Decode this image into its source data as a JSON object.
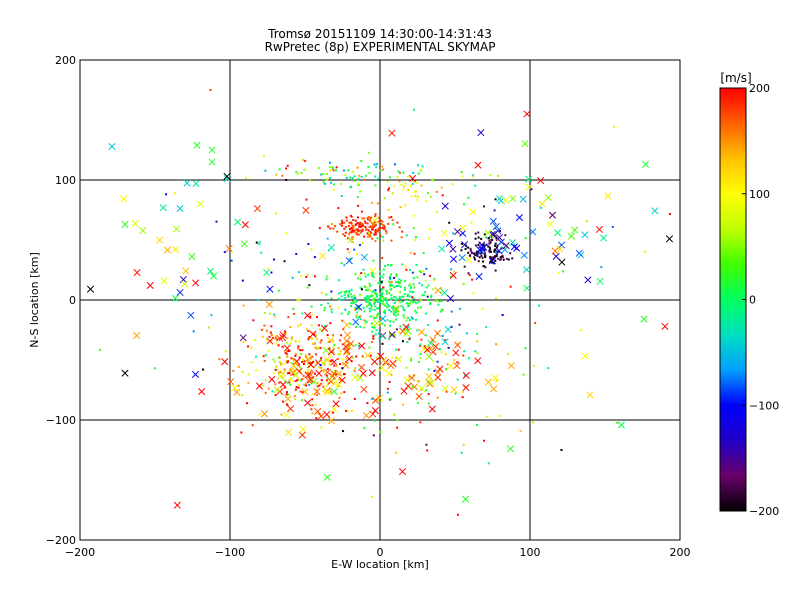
{
  "chart_data": {
    "type": "scatter",
    "title": "Tromsø 20151109 14:30:00-14:31:43",
    "subtitle": "RwPretec (8p) EXPERIMENTAL SKYMAP",
    "xlabel": "E-W location [km]",
    "ylabel": "N-S location [km]",
    "xlim": [
      -200,
      200
    ],
    "ylim": [
      -200,
      200
    ],
    "x_ticks": [
      -200,
      -100,
      0,
      100,
      200
    ],
    "y_ticks": [
      -200,
      -100,
      0,
      100,
      200
    ],
    "x_tick_labels": [
      "−200",
      "−100",
      "0",
      "100",
      "200"
    ],
    "y_tick_labels": [
      "−200",
      "−100",
      "0",
      "100",
      "200"
    ],
    "grid": true,
    "marker_types": [
      "dot",
      "cross"
    ],
    "colorbar": {
      "label": "[m/s]",
      "range": [
        -200,
        200
      ],
      "ticks": [
        200,
        100,
        0,
        -100,
        -200
      ],
      "tick_labels": [
        "200",
        "100",
        "0",
        "−100",
        "−200"
      ],
      "colormap": [
        "#000000",
        "#6a006a",
        "#2000c8",
        "#0000ff",
        "#00a0ff",
        "#00e0c0",
        "#00ff60",
        "#40ff00",
        "#c0ff00",
        "#ffff00",
        "#ffc000",
        "#ff6000",
        "#ff0000"
      ]
    },
    "clusters": [
      {
        "x": 0,
        "y": 0,
        "sx": 18,
        "sy": 12,
        "v": 5,
        "vs": 15,
        "n": 300,
        "marker": "dot"
      },
      {
        "x": -10,
        "y": 60,
        "sx": 10,
        "sy": 5,
        "v": 180,
        "vs": 15,
        "n": 160,
        "marker": "dot"
      },
      {
        "x": 70,
        "y": 40,
        "sx": 8,
        "sy": 7,
        "v": -190,
        "vs": 15,
        "n": 120,
        "marker": "dot"
      },
      {
        "x": 70,
        "y": 45,
        "sx": 12,
        "sy": 10,
        "v": -100,
        "vs": 30,
        "n": 25,
        "marker": "cross"
      },
      {
        "x": -50,
        "y": -55,
        "sx": 22,
        "sy": 20,
        "v": 150,
        "vs": 70,
        "n": 300,
        "marker": "dot"
      },
      {
        "x": -45,
        "y": -60,
        "sx": 25,
        "sy": 22,
        "v": 170,
        "vs": 50,
        "n": 80,
        "marker": "cross"
      },
      {
        "x": 30,
        "y": -60,
        "sx": 25,
        "sy": 25,
        "v": 80,
        "vs": 110,
        "n": 90,
        "marker": "dot"
      },
      {
        "x": 25,
        "y": -55,
        "sx": 25,
        "sy": 20,
        "v": 150,
        "vs": 60,
        "n": 50,
        "marker": "cross"
      },
      {
        "x": -10,
        "y": 105,
        "sx": 35,
        "sy": 6,
        "v": 40,
        "vs": 60,
        "n": 90,
        "marker": "dot"
      },
      {
        "x": 20,
        "y": 92,
        "sx": 15,
        "sy": 6,
        "v": 100,
        "vs": 40,
        "n": 30,
        "marker": "dot"
      },
      {
        "x": 0,
        "y": 20,
        "sx": 50,
        "sy": 35,
        "v": 20,
        "vs": 90,
        "n": 140,
        "marker": "dot"
      },
      {
        "x": 110,
        "y": 60,
        "sx": 30,
        "sy": 25,
        "v": 0,
        "vs": 110,
        "n": 35,
        "marker": "cross"
      },
      {
        "x": -140,
        "y": 30,
        "sx": 30,
        "sy": 40,
        "v": 80,
        "vs": 110,
        "n": 30,
        "marker": "cross"
      },
      {
        "x": 0,
        "y": 0,
        "sx": 90,
        "sy": 80,
        "v": 40,
        "vs": 130,
        "n": 120,
        "marker": "dot"
      },
      {
        "x": 0,
        "y": 0,
        "sx": 80,
        "sy": 70,
        "v": 60,
        "vs": 130,
        "n": 60,
        "marker": "cross"
      }
    ],
    "notable_points": [
      {
        "x": -193,
        "y": 9,
        "v": -200,
        "marker": "cross"
      },
      {
        "x": 193,
        "y": 51,
        "v": -200,
        "marker": "cross"
      },
      {
        "x": -102,
        "y": 103,
        "v": -200,
        "marker": "cross"
      },
      {
        "x": 98,
        "y": 155,
        "v": 200,
        "marker": "cross"
      },
      {
        "x": 177,
        "y": 113,
        "v": 20,
        "marker": "cross"
      },
      {
        "x": 57,
        "y": -166,
        "v": 20,
        "marker": "cross"
      },
      {
        "x": 15,
        "y": -143,
        "v": 200,
        "marker": "cross"
      },
      {
        "x": -112,
        "y": 125,
        "v": 20,
        "marker": "cross"
      },
      {
        "x": -122,
        "y": 129,
        "v": 20,
        "marker": "cross"
      },
      {
        "x": -112,
        "y": 115,
        "v": 20,
        "marker": "cross"
      },
      {
        "x": -170,
        "y": 63,
        "v": 20,
        "marker": "cross"
      },
      {
        "x": -170,
        "y": -61,
        "v": -200,
        "marker": "cross"
      },
      {
        "x": -123,
        "y": -62,
        "v": -100,
        "marker": "cross"
      },
      {
        "x": 190,
        "y": -22,
        "v": 200,
        "marker": "cross"
      },
      {
        "x": 176,
        "y": -16,
        "v": 20,
        "marker": "cross"
      },
      {
        "x": 87,
        "y": -124,
        "v": 20,
        "marker": "cross"
      },
      {
        "x": 121,
        "y": -125,
        "v": -200,
        "marker": "dot"
      },
      {
        "x": -113,
        "y": 175,
        "v": 180,
        "marker": "dot"
      },
      {
        "x": 52,
        "y": -179,
        "v": 200,
        "marker": "dot"
      },
      {
        "x": 140,
        "y": -79,
        "v": 120,
        "marker": "cross"
      }
    ]
  }
}
